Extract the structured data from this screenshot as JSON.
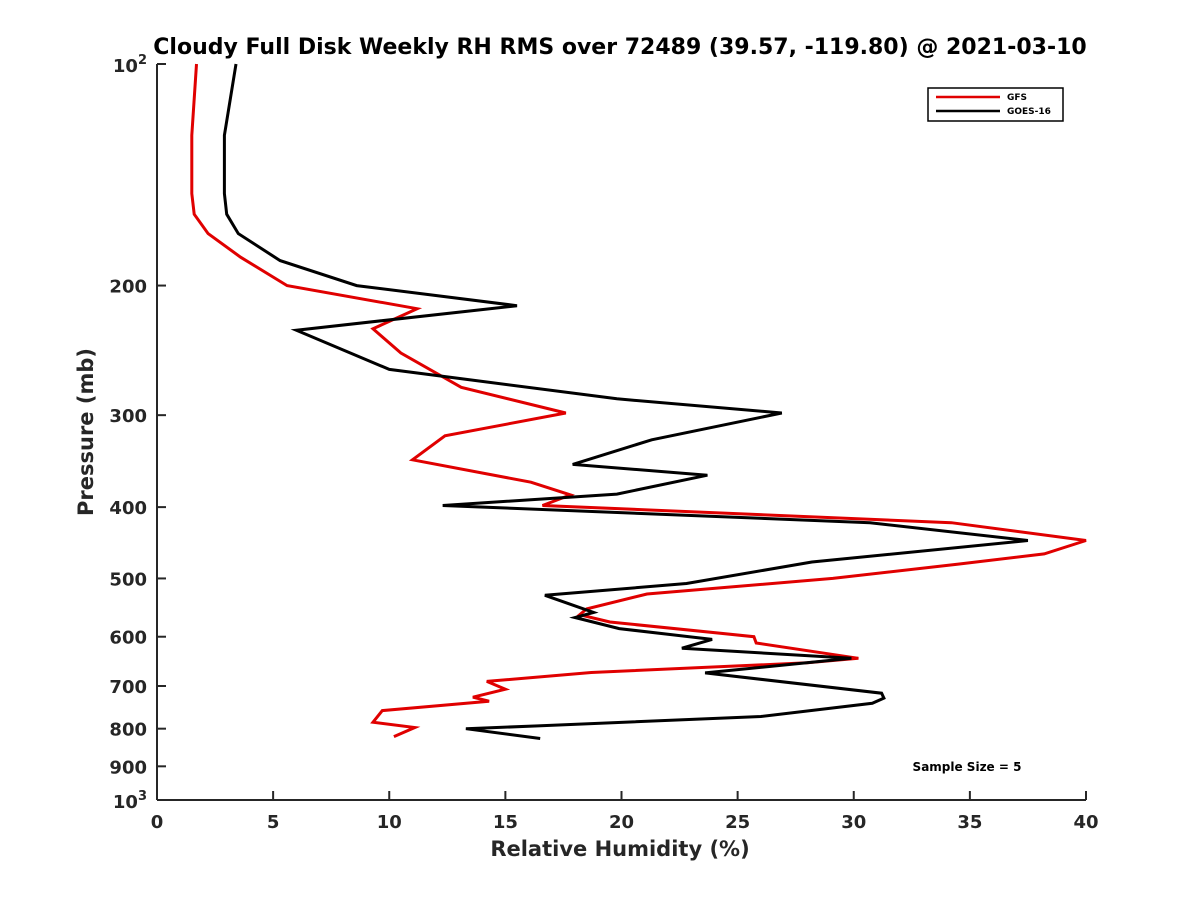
{
  "chart_data": {
    "type": "line",
    "title": "Cloudy Full Disk Weekly RH RMS over 72489 (39.57, -119.80) @ 2021-03-10",
    "xlabel": "Relative Humidity (%)",
    "ylabel": "Pressure (mb)",
    "xlim": [
      0,
      40
    ],
    "ylim": [
      100,
      1000
    ],
    "y_scale": "log",
    "y_reversed": true,
    "x_ticks": [
      0,
      5,
      10,
      15,
      20,
      25,
      30,
      35,
      40
    ],
    "y_ticks": [
      {
        "value": 100,
        "base": "10",
        "exp": "2"
      },
      {
        "value": 200,
        "label": "200"
      },
      {
        "value": 300,
        "label": "300"
      },
      {
        "value": 400,
        "label": "400"
      },
      {
        "value": 500,
        "label": "500"
      },
      {
        "value": 600,
        "label": "600"
      },
      {
        "value": 700,
        "label": "700"
      },
      {
        "value": 800,
        "label": "800"
      },
      {
        "value": 900,
        "label": "900"
      },
      {
        "value": 1000,
        "base": "10",
        "exp": "3"
      }
    ],
    "grid": false,
    "legend_position": "top-right",
    "annotation": "Sample Size = 5",
    "series": [
      {
        "name": "GFS",
        "color": "#e00000",
        "points": [
          [
            1.7,
            100
          ],
          [
            1.5,
            125
          ],
          [
            1.5,
            150
          ],
          [
            1.6,
            160
          ],
          [
            2.2,
            170
          ],
          [
            3.6,
            183
          ],
          [
            5.6,
            200
          ],
          [
            11.2,
            215
          ],
          [
            9.3,
            229
          ],
          [
            10.5,
            247
          ],
          [
            13.1,
            275
          ],
          [
            17.6,
            298
          ],
          [
            12.4,
            320
          ],
          [
            11.0,
            345
          ],
          [
            16.1,
            370
          ],
          [
            17.8,
            385
          ],
          [
            16.6,
            398
          ],
          [
            34.2,
            420
          ],
          [
            40.0,
            444
          ],
          [
            38.2,
            463
          ],
          [
            34.5,
            478
          ],
          [
            29.1,
            500
          ],
          [
            21.1,
            525
          ],
          [
            18.5,
            550
          ],
          [
            18.2,
            560
          ],
          [
            19.5,
            573
          ],
          [
            25.7,
            600
          ],
          [
            25.8,
            612
          ],
          [
            30.2,
            642
          ],
          [
            28.0,
            651
          ],
          [
            18.7,
            671
          ],
          [
            14.2,
            690
          ],
          [
            15.0,
            707
          ],
          [
            13.6,
            725
          ],
          [
            14.3,
            734
          ],
          [
            9.7,
            756
          ],
          [
            9.3,
            784
          ],
          [
            11.1,
            797
          ],
          [
            10.2,
            820
          ]
        ]
      },
      {
        "name": "GOES-16",
        "color": "#000000",
        "points": [
          [
            3.4,
            100
          ],
          [
            2.9,
            125
          ],
          [
            2.9,
            150
          ],
          [
            3.0,
            160
          ],
          [
            3.5,
            170
          ],
          [
            5.3,
            185
          ],
          [
            8.6,
            200
          ],
          [
            15.5,
            213
          ],
          [
            6.0,
            230
          ],
          [
            10.0,
            260
          ],
          [
            19.8,
            285
          ],
          [
            26.9,
            298
          ],
          [
            21.3,
            324
          ],
          [
            17.9,
            350
          ],
          [
            23.7,
            362
          ],
          [
            19.8,
            384
          ],
          [
            12.3,
            398
          ],
          [
            30.7,
            420
          ],
          [
            37.5,
            444
          ],
          [
            28.2,
            475
          ],
          [
            22.8,
            508
          ],
          [
            16.7,
            527
          ],
          [
            18.8,
            556
          ],
          [
            18.0,
            565
          ],
          [
            19.9,
            585
          ],
          [
            23.9,
            605
          ],
          [
            22.6,
            622
          ],
          [
            29.9,
            642
          ],
          [
            23.6,
            672
          ],
          [
            31.2,
            716
          ],
          [
            31.3,
            727
          ],
          [
            30.8,
            739
          ],
          [
            26.0,
            770
          ],
          [
            16.4,
            793
          ],
          [
            13.3,
            800
          ],
          [
            16.5,
            825
          ]
        ]
      }
    ]
  }
}
